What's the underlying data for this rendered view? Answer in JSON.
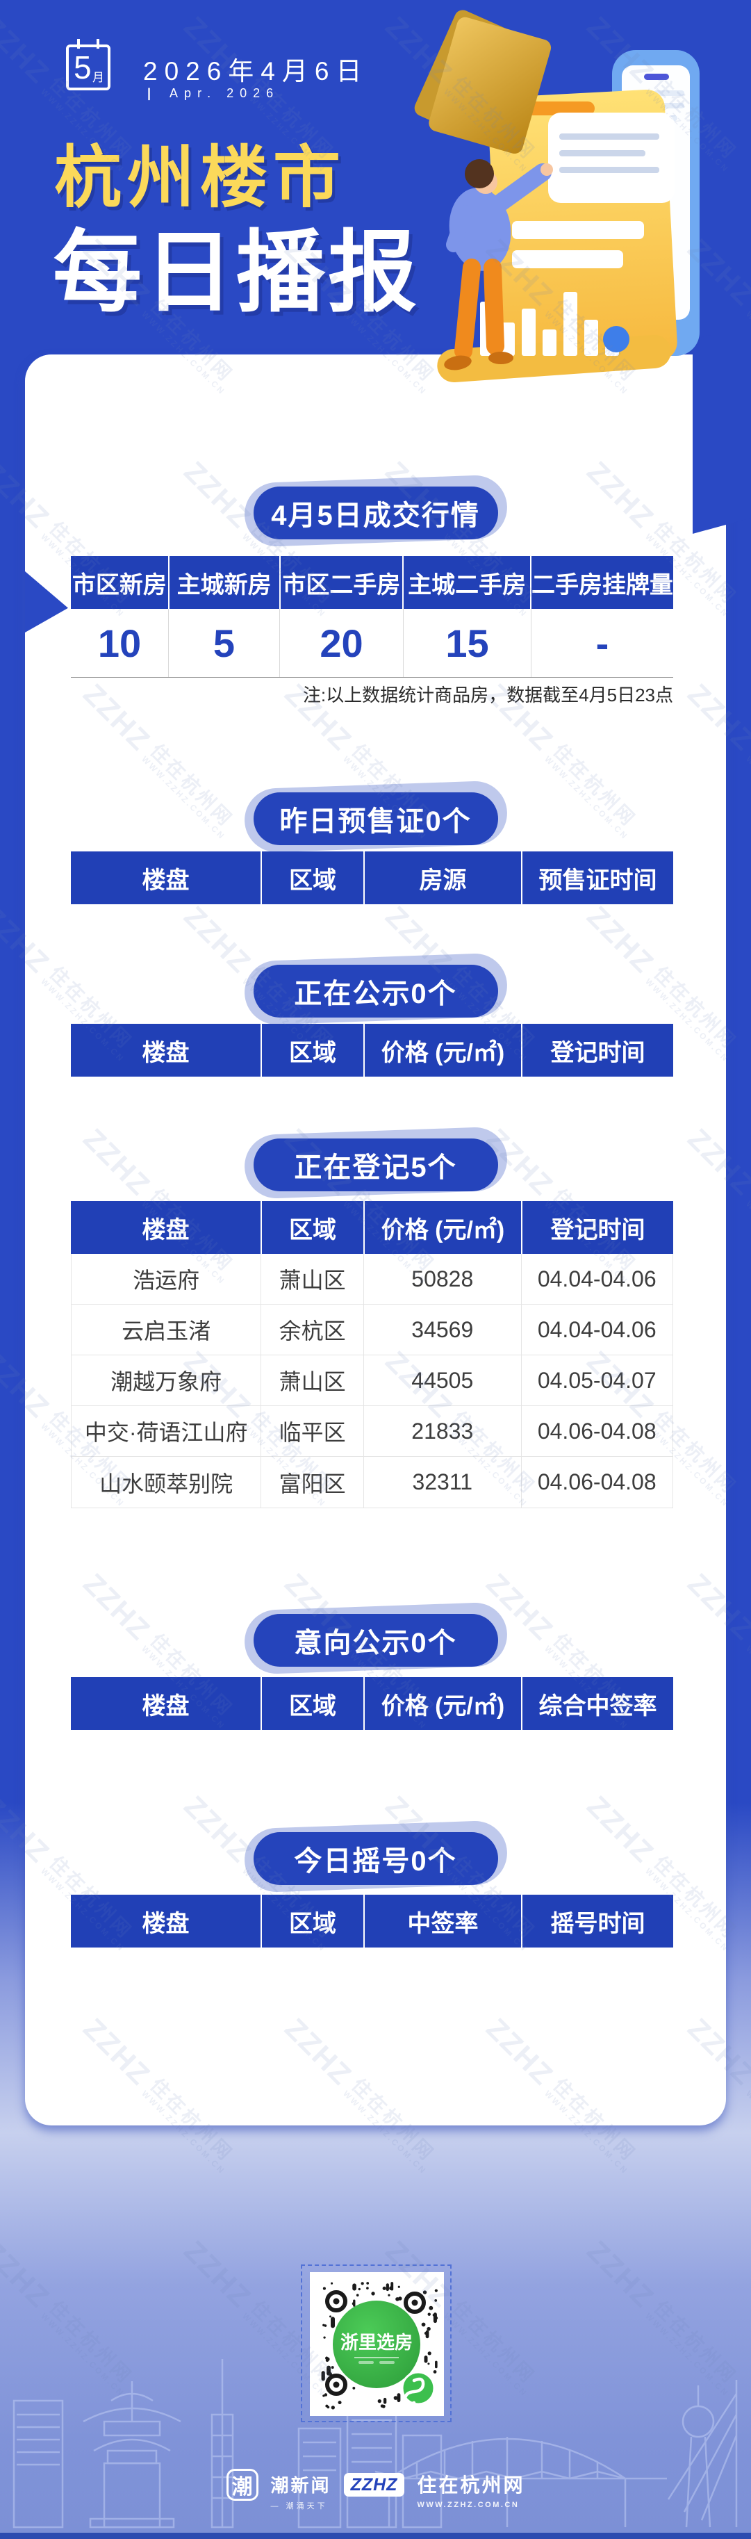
{
  "header": {
    "calendar_day": "5",
    "calendar_unit": "月",
    "date": "2026年4月6日",
    "date_bar": "|",
    "date_en": "Apr. 2026",
    "title_top": "杭州楼市",
    "title_main": "每日播报"
  },
  "deal": {
    "badge": "4月5日成交行情",
    "columns": [
      "市区新房",
      "主城新房",
      "市区二手房",
      "主城二手房",
      "二手房挂牌量"
    ],
    "values": [
      "10",
      "5",
      "20",
      "15",
      "-"
    ],
    "note": "注:以上数据统计商品房，数据截至4月5日23点"
  },
  "presale": {
    "badge": "昨日预售证0个",
    "columns": [
      "楼盘",
      "区域",
      "房源",
      "预售证时间"
    ]
  },
  "publicity": {
    "badge": "正在公示0个",
    "columns": [
      "楼盘",
      "区域",
      "价格 (元/㎡)",
      "登记时间"
    ]
  },
  "registration": {
    "badge": "正在登记5个",
    "columns": [
      "楼盘",
      "区域",
      "价格 (元/㎡)",
      "登记时间"
    ],
    "rows": [
      [
        "浩运府",
        "萧山区",
        "50828",
        "04.04-04.06"
      ],
      [
        "云启玉渚",
        "余杭区",
        "34569",
        "04.04-04.06"
      ],
      [
        "潮越万象府",
        "萧山区",
        "44505",
        "04.05-04.07"
      ],
      [
        "中交·荷语江山府",
        "临平区",
        "21833",
        "04.06-04.08"
      ],
      [
        "山水颐萃别院",
        "富阳区",
        "32311",
        "04.06-04.08"
      ]
    ]
  },
  "intention": {
    "badge": "意向公示0个",
    "columns": [
      "楼盘",
      "区域",
      "价格 (元/㎡)",
      "综合中签率"
    ]
  },
  "lottery": {
    "badge": "今日摇号0个",
    "columns": [
      "楼盘",
      "区域",
      "中签率",
      "摇号时间"
    ]
  },
  "qr": {
    "label": "浙里选房"
  },
  "footer": {
    "chao_char": "潮",
    "chao_name": "潮新闻",
    "chao_slogan": "— 潮涌天下",
    "zzhz_logo": "ZZHZ",
    "zzhz_name": "住在杭州网",
    "zzhz_url": "WWW.ZZHZ.COM.CN"
  },
  "watermark": {
    "logo": "ZZHZ",
    "name": "住在杭州网",
    "url": "WWW.ZZHZ.COM.CN"
  },
  "colors": {
    "primary": "#2A49C4",
    "badge_blue": "#2544BB",
    "table_header_blue": "#2140B6",
    "lavender": "#BFC9EC",
    "title_yellow": "#FBD95A",
    "value_blue": "#2443BB",
    "qr_green": "#3DB24B"
  }
}
